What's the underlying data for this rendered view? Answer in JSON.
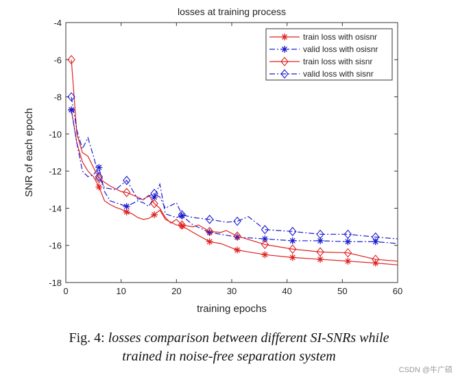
{
  "chart_data": {
    "type": "line",
    "title": "losses at training process",
    "xlabel": "training epochs",
    "ylabel": "SNR of each epoch",
    "xlim": [
      0,
      60
    ],
    "ylim": [
      -18,
      -4
    ],
    "xticks": [
      0,
      10,
      20,
      30,
      40,
      50,
      60
    ],
    "yticks": [
      -4,
      -6,
      -8,
      -10,
      -12,
      -14,
      -16,
      -18
    ],
    "grid": false,
    "legend_position": "top-right",
    "series": [
      {
        "name": "train loss with osisnr",
        "color": "#e02020",
        "dash": "solid",
        "marker": "star",
        "x": [
          1,
          2,
          3,
          4,
          5,
          6,
          7,
          8,
          9,
          10,
          11,
          12,
          13,
          14,
          15,
          16,
          17,
          18,
          20,
          21,
          23,
          26,
          28,
          31,
          33,
          36,
          41,
          46,
          51,
          56,
          60
        ],
        "y": [
          -8.7,
          -10.5,
          -11.5,
          -12.0,
          -12.3,
          -12.85,
          -13.6,
          -13.8,
          -13.95,
          -14.05,
          -14.2,
          -14.3,
          -14.5,
          -14.6,
          -14.55,
          -14.35,
          -14.1,
          -14.6,
          -14.9,
          -14.95,
          -15.3,
          -15.8,
          -15.9,
          -16.25,
          -16.35,
          -16.5,
          -16.65,
          -16.75,
          -16.85,
          -16.95,
          -17.05
        ]
      },
      {
        "name": "valid loss with osisnr",
        "color": "#1a1ad0",
        "dash": "dashdot",
        "marker": "star",
        "x": [
          1,
          2,
          3,
          4,
          5,
          6,
          7,
          8,
          10,
          11,
          13,
          14,
          15,
          16,
          17,
          18,
          20,
          21,
          23,
          26,
          29,
          31,
          36,
          41,
          46,
          51,
          56,
          60
        ],
        "y": [
          -8.7,
          -10.5,
          -12.0,
          -12.3,
          -12.2,
          -11.8,
          -13.1,
          -13.6,
          -13.8,
          -13.9,
          -13.6,
          -13.7,
          -13.9,
          -13.4,
          -12.7,
          -14.3,
          -14.5,
          -14.4,
          -14.9,
          -15.3,
          -15.45,
          -15.55,
          -15.65,
          -15.75,
          -15.75,
          -15.8,
          -15.8,
          -15.9
        ]
      },
      {
        "name": "train loss with sisnr",
        "color": "#e02020",
        "dash": "solid",
        "marker": "diamond",
        "x": [
          1,
          2,
          3,
          4,
          5,
          6,
          8,
          10,
          11,
          13,
          14,
          15,
          16,
          17,
          18,
          19,
          20,
          21,
          23,
          24,
          26,
          28,
          29,
          31,
          36,
          41,
          46,
          51,
          56,
          60
        ],
        "y": [
          -6.0,
          -10.0,
          -11.0,
          -11.2,
          -11.8,
          -12.4,
          -12.8,
          -13.1,
          -13.15,
          -13.4,
          -13.55,
          -13.3,
          -13.75,
          -14.0,
          -14.5,
          -14.8,
          -14.6,
          -14.9,
          -15.0,
          -14.9,
          -15.25,
          -15.3,
          -15.2,
          -15.5,
          -15.95,
          -16.2,
          -16.35,
          -16.4,
          -16.75,
          -16.85
        ]
      },
      {
        "name": "valid loss with sisnr",
        "color": "#1a1ad0",
        "dash": "dashdot",
        "marker": "diamond",
        "x": [
          1,
          2,
          3,
          4,
          5,
          6,
          7,
          9,
          11,
          13,
          14,
          16,
          17,
          18,
          20,
          21,
          23,
          26,
          29,
          31,
          33,
          36,
          41,
          46,
          51,
          56,
          60
        ],
        "y": [
          -8.0,
          -9.8,
          -10.8,
          -10.2,
          -11.2,
          -12.3,
          -12.9,
          -13.0,
          -12.5,
          -13.5,
          -13.5,
          -13.2,
          -13.4,
          -14.0,
          -13.7,
          -14.35,
          -14.5,
          -14.6,
          -14.75,
          -14.7,
          -14.45,
          -15.15,
          -15.25,
          -15.4,
          -15.4,
          -15.55,
          -15.65
        ]
      }
    ]
  },
  "caption": {
    "prefix": "Fig. 4: ",
    "line1": "losses comparison between different SI-SNRs while",
    "line2": "trained in noise-free separation system"
  },
  "watermark": "CSDN @牛广硕"
}
